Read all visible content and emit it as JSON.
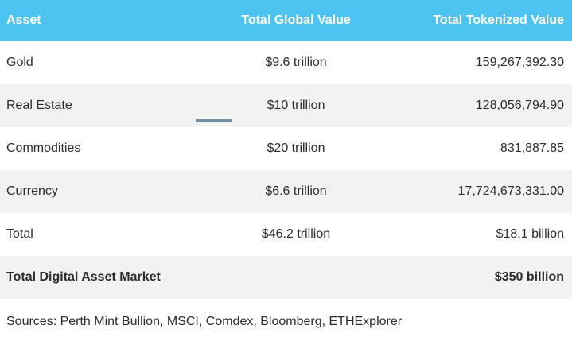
{
  "table": {
    "headers": [
      "Asset",
      "Total Global Value",
      "Total Tokenized Value"
    ],
    "rows": [
      {
        "asset": "Gold",
        "global": "$9.6 trillion",
        "tokenized": "159,267,392.30"
      },
      {
        "asset": "Real Estate",
        "global": "$10 trillion",
        "tokenized": "128,056,794.90"
      },
      {
        "asset": "Commodities",
        "global": "$20 trillion",
        "tokenized": "831,887.85"
      },
      {
        "asset": "Currency",
        "global": "$6.6 trillion",
        "tokenized": "17,724,673,331.00"
      },
      {
        "asset": "Total",
        "global": "$46.2 trillion",
        "tokenized": "$18.1 billion"
      },
      {
        "asset": "Total Digital Asset Market",
        "global": "",
        "tokenized": "$350 billion"
      }
    ]
  },
  "sources": "Sources: Perth Mint Bullion, MSCI, Comdex, Bloomberg, ETHExplorer"
}
